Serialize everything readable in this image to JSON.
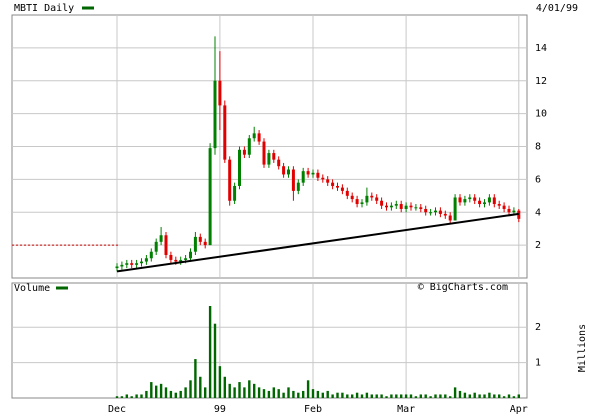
{
  "chart_data": [
    {
      "type": "candlestick",
      "title": "MBTI Daily",
      "date": "4/01/99",
      "color": "#006600",
      "up_color": "#008000",
      "down_color": "#e00000",
      "open": [
        0.6,
        0.7,
        0.8,
        0.9,
        0.8,
        0.9,
        1.0,
        1.2,
        1.6,
        2.2,
        2.6,
        1.4,
        1.1,
        1.0,
        1.1,
        1.2,
        1.6,
        2.5,
        2.2,
        2.0,
        7.9,
        12.0,
        10.5,
        7.2,
        4.7,
        5.6,
        7.8,
        7.5,
        8.5,
        8.8,
        8.3,
        6.9,
        7.6,
        7.2,
        6.8,
        6.3,
        6.6,
        5.3,
        5.8,
        6.5,
        6.3,
        6.4,
        6.1,
        6.0,
        5.8,
        5.6,
        5.5,
        5.3,
        5.0,
        4.8,
        4.5,
        4.6,
        5.0,
        4.9,
        4.7,
        4.4,
        4.3,
        4.4,
        4.5,
        4.2,
        4.4,
        4.3,
        4.3,
        4.2,
        4.0,
        4.0,
        4.1,
        3.9,
        3.8,
        3.5,
        4.9,
        4.6,
        4.8,
        4.9,
        4.7,
        4.5,
        4.6,
        4.9,
        4.5,
        4.4,
        4.2,
        4.0,
        4.1
      ],
      "high": [
        0.9,
        1.0,
        1.1,
        1.1,
        1.1,
        1.2,
        1.4,
        1.8,
        2.4,
        3.1,
        2.8,
        1.6,
        1.3,
        1.3,
        1.4,
        1.8,
        2.8,
        2.7,
        2.4,
        8.2,
        14.7,
        13.8,
        10.8,
        7.4,
        5.8,
        8.0,
        8.0,
        8.7,
        9.2,
        9.0,
        8.5,
        7.8,
        7.8,
        7.4,
        7.0,
        6.8,
        6.8,
        6.0,
        6.7,
        6.7,
        6.6,
        6.6,
        6.3,
        6.2,
        6.0,
        5.8,
        5.7,
        5.5,
        5.2,
        5.0,
        4.8,
        5.5,
        5.2,
        5.1,
        4.9,
        4.6,
        4.6,
        4.7,
        4.7,
        4.6,
        4.6,
        4.5,
        4.5,
        4.4,
        4.2,
        4.3,
        4.3,
        4.1,
        4.0,
        5.1,
        5.1,
        5.0,
        5.1,
        5.1,
        4.9,
        4.8,
        5.1,
        5.1,
        4.7,
        4.6,
        4.4,
        4.3,
        4.2
      ],
      "low": [
        0.4,
        0.5,
        0.6,
        0.6,
        0.6,
        0.7,
        0.8,
        1.0,
        1.4,
        2.0,
        1.2,
        0.9,
        0.8,
        0.8,
        0.9,
        1.0,
        1.4,
        2.0,
        1.8,
        2.0,
        7.5,
        9.0,
        7.0,
        4.4,
        4.5,
        5.4,
        7.3,
        7.3,
        8.3,
        8.1,
        6.7,
        6.7,
        7.0,
        6.6,
        6.1,
        6.1,
        4.7,
        5.1,
        5.6,
        6.1,
        6.1,
        5.9,
        5.8,
        5.6,
        5.4,
        5.3,
        5.1,
        4.8,
        4.6,
        4.3,
        4.3,
        4.4,
        4.7,
        4.5,
        4.2,
        4.1,
        4.1,
        4.2,
        4.0,
        4.0,
        4.1,
        4.1,
        4.0,
        3.8,
        3.8,
        3.8,
        3.7,
        3.6,
        3.3,
        3.5,
        4.4,
        4.4,
        4.6,
        4.5,
        4.3,
        4.3,
        4.4,
        4.3,
        4.2,
        4.0,
        3.8,
        3.8,
        3.4
      ],
      "close": [
        0.7,
        0.8,
        0.9,
        0.8,
        0.9,
        1.0,
        1.2,
        1.6,
        2.2,
        2.6,
        1.4,
        1.1,
        1.0,
        1.1,
        1.2,
        1.6,
        2.5,
        2.2,
        2.0,
        7.9,
        12.0,
        10.5,
        7.2,
        4.7,
        5.6,
        7.8,
        7.5,
        8.5,
        8.8,
        8.3,
        6.9,
        7.6,
        7.2,
        6.8,
        6.3,
        6.6,
        5.3,
        5.8,
        6.5,
        6.3,
        6.4,
        6.1,
        6.0,
        5.8,
        5.6,
        5.5,
        5.3,
        5.0,
        4.8,
        4.5,
        4.6,
        5.0,
        4.9,
        4.7,
        4.4,
        4.3,
        4.4,
        4.5,
        4.2,
        4.4,
        4.3,
        4.3,
        4.2,
        4.0,
        4.0,
        4.1,
        3.9,
        3.8,
        3.5,
        4.9,
        4.6,
        4.8,
        4.9,
        4.7,
        4.5,
        4.6,
        4.9,
        4.5,
        4.4,
        4.2,
        4.0,
        4.1,
        3.6
      ],
      "trendline": [
        0.4,
        3.9
      ],
      "trendline_color": "#000000",
      "reference_line": 2,
      "reference_color": "#cc0000",
      "ylim": [
        0,
        16
      ],
      "yticks": [
        2,
        4,
        6,
        8,
        10,
        12,
        14
      ],
      "grid": true
    },
    {
      "type": "bar",
      "title": "Volume",
      "source": "© BigCharts.com",
      "y_label": "Millions",
      "color": "#006600",
      "categories": [
        "Dec",
        null,
        null,
        null,
        null,
        null,
        null,
        null,
        null,
        null,
        null,
        null,
        null,
        null,
        null,
        null,
        null,
        null,
        null,
        null,
        null,
        "99",
        null,
        null,
        null,
        null,
        null,
        null,
        null,
        null,
        null,
        null,
        null,
        null,
        null,
        null,
        null,
        null,
        null,
        null,
        "Feb",
        null,
        null,
        null,
        null,
        null,
        null,
        null,
        null,
        null,
        null,
        null,
        null,
        null,
        null,
        null,
        null,
        null,
        null,
        "Mar",
        null,
        null,
        null,
        null,
        null,
        null,
        null,
        null,
        null,
        null,
        null,
        null,
        null,
        null,
        null,
        null,
        null,
        null,
        null,
        null,
        null,
        null,
        "Apr"
      ],
      "values": [
        0.05,
        0.05,
        0.1,
        0.05,
        0.1,
        0.1,
        0.2,
        0.45,
        0.35,
        0.4,
        0.3,
        0.2,
        0.15,
        0.2,
        0.3,
        0.5,
        1.1,
        0.6,
        0.3,
        2.6,
        2.1,
        0.9,
        0.6,
        0.4,
        0.3,
        0.45,
        0.3,
        0.5,
        0.4,
        0.3,
        0.25,
        0.2,
        0.3,
        0.25,
        0.15,
        0.3,
        0.2,
        0.15,
        0.2,
        0.5,
        0.25,
        0.2,
        0.15,
        0.2,
        0.1,
        0.15,
        0.15,
        0.1,
        0.1,
        0.15,
        0.1,
        0.15,
        0.1,
        0.1,
        0.1,
        0.05,
        0.1,
        0.1,
        0.1,
        0.1,
        0.1,
        0.05,
        0.1,
        0.1,
        0.05,
        0.1,
        0.1,
        0.1,
        0.05,
        0.3,
        0.2,
        0.15,
        0.1,
        0.15,
        0.1,
        0.1,
        0.15,
        0.1,
        0.1,
        0.05,
        0.1,
        0.05,
        0.1
      ],
      "ylim": [
        0,
        3.25
      ],
      "yticks": [
        1,
        2
      ],
      "grid": true
    }
  ]
}
